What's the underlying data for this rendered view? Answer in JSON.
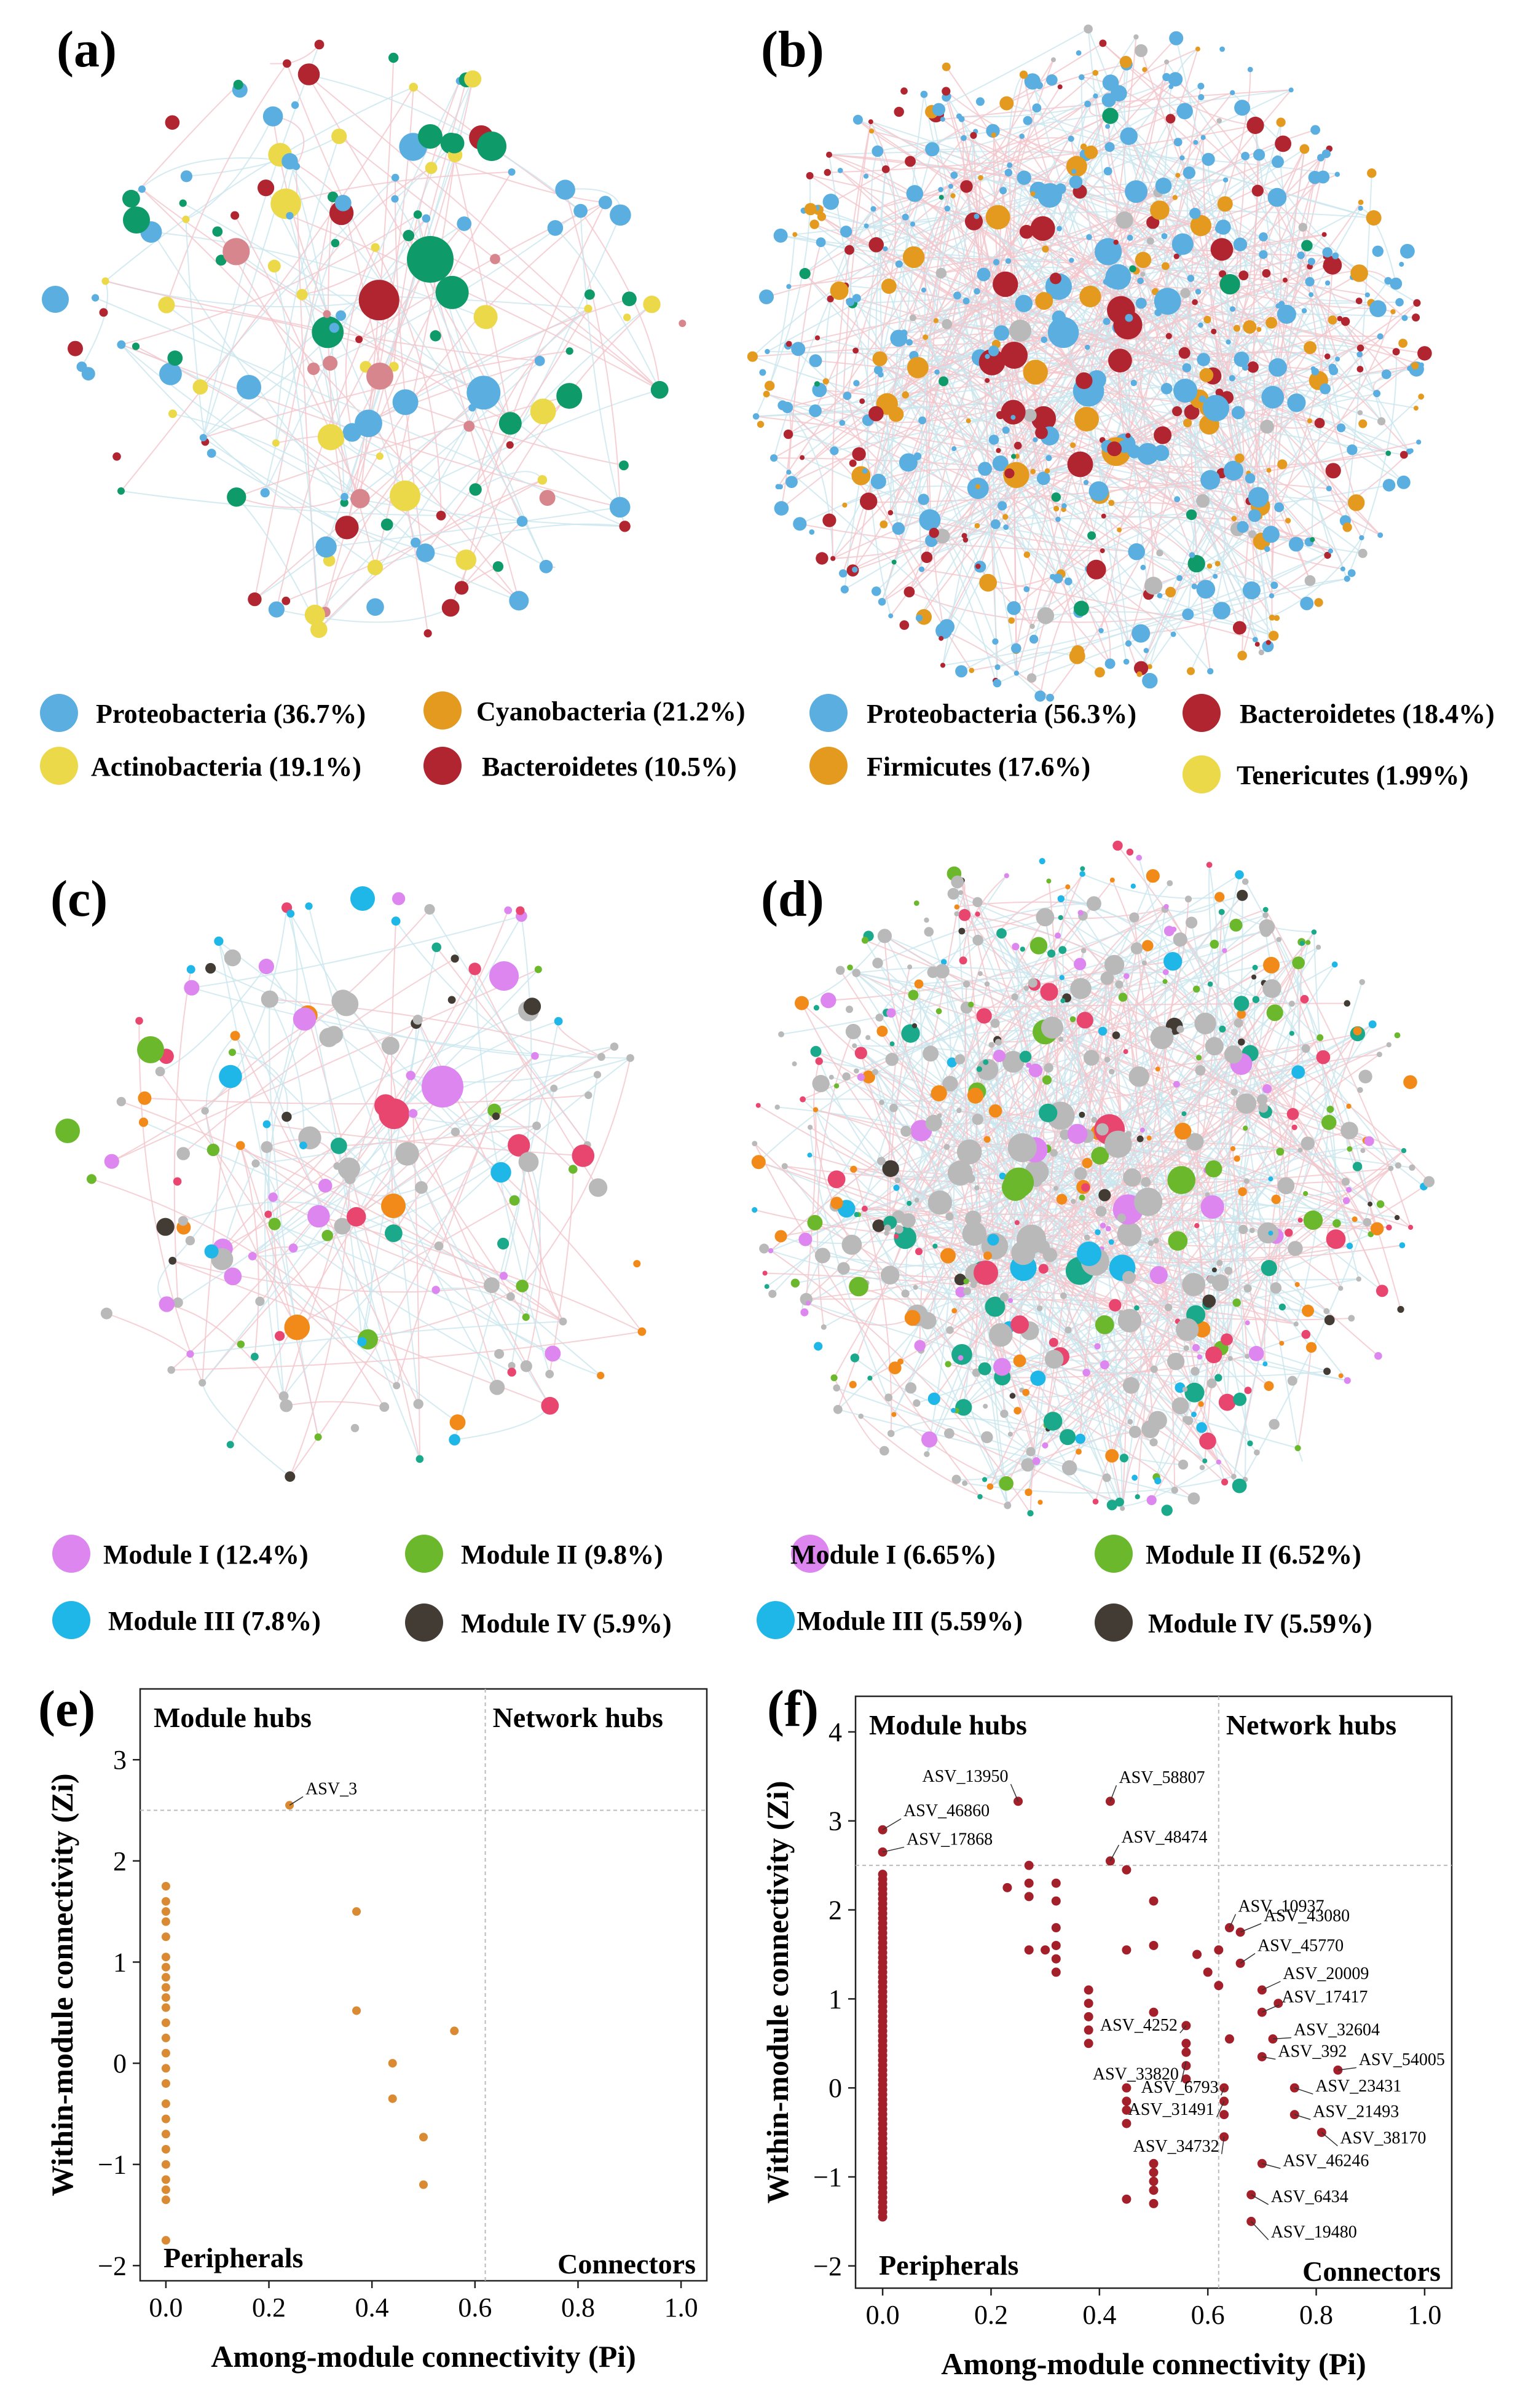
{
  "panels": {
    "a": {
      "letter": "(a)"
    },
    "b": {
      "letter": "(b)"
    },
    "c": {
      "letter": "(c)"
    },
    "d": {
      "letter": "(d)"
    },
    "e": {
      "letter": "(e)"
    },
    "f": {
      "letter": "(f)"
    }
  },
  "colors": {
    "proteobacteria": "#5aaee0",
    "cyanobacteria": "#e39a1f",
    "actinobacteria": "#ecd94a",
    "bacteroidetes": "#b0252f",
    "green_teal": "#0f9a6a",
    "rose": "#d8868e",
    "gray": "#b9b9b9",
    "pink": "#e8466f",
    "module_i": "#dd86f0",
    "module_ii": "#6bb82c",
    "module_iii": "#1fb6e8",
    "module_iv": "#433c34",
    "orange": "#f28a1a",
    "teal": "#1aa98a",
    "scatter_e": "#d98a32",
    "scatter_f": "#a3202a",
    "edge": "#cfcfcf"
  },
  "legend_ab": [
    {
      "label": "Proteobacteria (36.7%)",
      "color": "proteobacteria"
    },
    {
      "label": "Cyanobacteria (21.2%)",
      "color": "cyanobacteria"
    },
    {
      "label": "Proteobacteria (56.3%)",
      "color": "proteobacteria"
    },
    {
      "label": "Bacteroidetes (18.4%)",
      "color": "bacteroidetes"
    },
    {
      "label": "Actinobacteria (19.1%)",
      "color": "actinobacteria"
    },
    {
      "label": "Bacteroidetes (10.5%)",
      "color": "bacteroidetes"
    },
    {
      "label": "Firmicutes (17.6%)",
      "color": "cyanobacteria"
    },
    {
      "label": "Tenericutes (1.99%)",
      "color": "actinobacteria"
    }
  ],
  "legend_cd": [
    {
      "label": "Module I (12.4%)",
      "color": "module_i"
    },
    {
      "label": "Module II (9.8%)",
      "color": "module_ii"
    },
    {
      "label": "Module I (6.65%)",
      "color": "module_i"
    },
    {
      "label": "Module II (6.52%)",
      "color": "module_ii"
    },
    {
      "label": "Module III (7.8%)",
      "color": "module_iii"
    },
    {
      "label": "Module IV (5.9%)",
      "color": "module_iv"
    },
    {
      "label": "Module III (5.59%)",
      "color": "module_iii"
    },
    {
      "label": "Module IV (5.59%)",
      "color": "module_iv"
    }
  ],
  "chart_data": [
    {
      "panel": "e",
      "type": "scatter",
      "xlabel": "Among-module connectivity (Pi)",
      "ylabel": "Within-module connectivity (Zi)",
      "xlim": [
        -0.05,
        1.05
      ],
      "ylim": [
        -2.15,
        3.7
      ],
      "xticks": [
        "0.0",
        "0.2",
        "0.4",
        "0.6",
        "0.8",
        "1.0"
      ],
      "yticks": [
        "−2",
        "−1",
        "0",
        "1",
        "2",
        "3"
      ],
      "thresholds": {
        "x": 0.62,
        "y": 2.5
      },
      "region_labels": {
        "module_hubs": "Module hubs",
        "network_hubs": "Network hubs",
        "peripherals": "Peripherals",
        "connectors": "Connectors"
      },
      "points": [
        [
          0,
          1.75
        ],
        [
          0,
          1.6
        ],
        [
          0,
          1.5
        ],
        [
          0,
          1.4
        ],
        [
          0,
          1.25
        ],
        [
          0,
          1.05
        ],
        [
          0,
          0.95
        ],
        [
          0,
          0.85
        ],
        [
          0,
          0.75
        ],
        [
          0,
          0.65
        ],
        [
          0,
          0.55
        ],
        [
          0,
          0.4
        ],
        [
          0,
          0.25
        ],
        [
          0,
          0.1
        ],
        [
          0,
          -0.05
        ],
        [
          0,
          -0.2
        ],
        [
          0,
          -0.4
        ],
        [
          0,
          -0.55
        ],
        [
          0,
          -0.7
        ],
        [
          0,
          -0.85
        ],
        [
          0,
          -1.0
        ],
        [
          0,
          -1.15
        ],
        [
          0,
          -1.25
        ],
        [
          0,
          -1.35
        ],
        [
          0,
          -1.75
        ],
        [
          0.24,
          2.55
        ],
        [
          0.37,
          1.5
        ],
        [
          0.37,
          0.52
        ],
        [
          0.44,
          0.0
        ],
        [
          0.44,
          -0.35
        ],
        [
          0.5,
          -0.73
        ],
        [
          0.5,
          -1.2
        ],
        [
          0.56,
          0.32
        ]
      ],
      "annotations": [
        {
          "label": "ASV_3",
          "x": 0.24,
          "y": 2.55
        }
      ]
    },
    {
      "panel": "f",
      "type": "scatter",
      "xlabel": "Among-module connectivity (Pi)",
      "ylabel": "Within-module connectivity (Zi)",
      "xlim": [
        -0.05,
        1.05
      ],
      "ylim": [
        -2.25,
        4.4
      ],
      "xticks": [
        "0.0",
        "0.2",
        "0.4",
        "0.6",
        "0.8",
        "1.0"
      ],
      "yticks": [
        "−2",
        "−1",
        "0",
        "1",
        "2",
        "3",
        "4"
      ],
      "thresholds": {
        "x": 0.62,
        "y": 2.5
      },
      "region_labels": {
        "module_hubs": "Module hubs",
        "network_hubs": "Network hubs",
        "peripherals": "Peripherals",
        "connectors": "Connectors"
      },
      "points": [
        [
          0,
          2.9
        ],
        [
          0,
          2.65
        ],
        [
          0.25,
          3.22
        ],
        [
          0.42,
          3.22
        ],
        [
          0.42,
          2.55
        ],
        [
          0.45,
          2.45
        ],
        [
          0.23,
          2.25
        ],
        [
          0.27,
          2.5
        ],
        [
          0.27,
          2.3
        ],
        [
          0.27,
          2.15
        ],
        [
          0.32,
          2.3
        ],
        [
          0.32,
          2.1
        ],
        [
          0.27,
          1.55
        ],
        [
          0.3,
          1.55
        ],
        [
          0.32,
          1.8
        ],
        [
          0.32,
          1.6
        ],
        [
          0.32,
          1.45
        ],
        [
          0.32,
          1.3
        ],
        [
          0.38,
          1.1
        ],
        [
          0.38,
          0.95
        ],
        [
          0.38,
          0.8
        ],
        [
          0.38,
          0.65
        ],
        [
          0.38,
          0.5
        ],
        [
          0.45,
          1.55
        ],
        [
          0.5,
          2.1
        ],
        [
          0.5,
          1.6
        ],
        [
          0.5,
          0.85
        ],
        [
          0.56,
          0.7
        ],
        [
          0.56,
          0.5
        ],
        [
          0.56,
          0.4
        ],
        [
          0.56,
          0.25
        ],
        [
          0.56,
          0.1
        ],
        [
          0.58,
          1.5
        ],
        [
          0.6,
          1.3
        ],
        [
          0.62,
          1.55
        ],
        [
          0.62,
          1.15
        ],
        [
          0.64,
          0.55
        ],
        [
          0.45,
          0.0
        ],
        [
          0.45,
          -0.15
        ],
        [
          0.45,
          -0.25
        ],
        [
          0.45,
          -0.4
        ],
        [
          0.45,
          -1.25
        ],
        [
          0.5,
          -0.85
        ],
        [
          0.5,
          -0.95
        ],
        [
          0.5,
          -1.05
        ],
        [
          0.5,
          -1.15
        ],
        [
          0.5,
          -1.3
        ],
        [
          0.63,
          0.0
        ],
        [
          0.63,
          -0.15
        ],
        [
          0.63,
          -0.3
        ],
        [
          0.63,
          -0.55
        ],
        [
          0.64,
          1.8
        ],
        [
          0.66,
          1.75
        ],
        [
          0.66,
          1.4
        ],
        [
          0.7,
          1.1
        ],
        [
          0.73,
          0.95
        ],
        [
          0.7,
          0.85
        ],
        [
          0.72,
          0.55
        ],
        [
          0.7,
          0.35
        ],
        [
          0.84,
          0.2
        ],
        [
          0.76,
          0.0
        ],
        [
          0.76,
          -0.3
        ],
        [
          0.81,
          -0.5
        ],
        [
          0.7,
          -0.85
        ],
        [
          0.68,
          -1.2
        ],
        [
          0.68,
          -1.5
        ]
      ],
      "annotations": [
        {
          "label": "ASV_13950",
          "x": 0.25,
          "y": 3.22
        },
        {
          "label": "ASV_58807",
          "x": 0.42,
          "y": 3.22
        },
        {
          "label": "ASV_46860",
          "x": 0.0,
          "y": 2.9
        },
        {
          "label": "ASV_48474",
          "x": 0.42,
          "y": 2.55
        },
        {
          "label": "ASV_17868",
          "x": 0.0,
          "y": 2.65
        },
        {
          "label": "ASV_10937",
          "x": 0.64,
          "y": 1.8
        },
        {
          "label": "ASV_43080",
          "x": 0.66,
          "y": 1.75
        },
        {
          "label": "ASV_45770",
          "x": 0.66,
          "y": 1.4
        },
        {
          "label": "ASV_20009",
          "x": 0.7,
          "y": 1.1
        },
        {
          "label": "ASV_17417",
          "x": 0.7,
          "y": 0.85
        },
        {
          "label": "ASV_4252",
          "x": 0.56,
          "y": 0.7
        },
        {
          "label": "ASV_32604",
          "x": 0.72,
          "y": 0.55
        },
        {
          "label": "ASV_392",
          "x": 0.7,
          "y": 0.35
        },
        {
          "label": "ASV_33820",
          "x": 0.56,
          "y": 0.3
        },
        {
          "label": "ASV_54005",
          "x": 0.84,
          "y": 0.2
        },
        {
          "label": "ASV_6793",
          "x": 0.63,
          "y": 0.0
        },
        {
          "label": "ASV_23431",
          "x": 0.76,
          "y": 0.0
        },
        {
          "label": "ASV_31491",
          "x": 0.63,
          "y": -0.15
        },
        {
          "label": "ASV_21493",
          "x": 0.76,
          "y": -0.3
        },
        {
          "label": "ASV_38170",
          "x": 0.81,
          "y": -0.5
        },
        {
          "label": "ASV_34732",
          "x": 0.63,
          "y": -0.55
        },
        {
          "label": "ASV_46246",
          "x": 0.7,
          "y": -0.85
        },
        {
          "label": "ASV_6434",
          "x": 0.68,
          "y": -1.2
        },
        {
          "label": "ASV_19480",
          "x": 0.68,
          "y": -1.5
        }
      ]
    }
  ]
}
